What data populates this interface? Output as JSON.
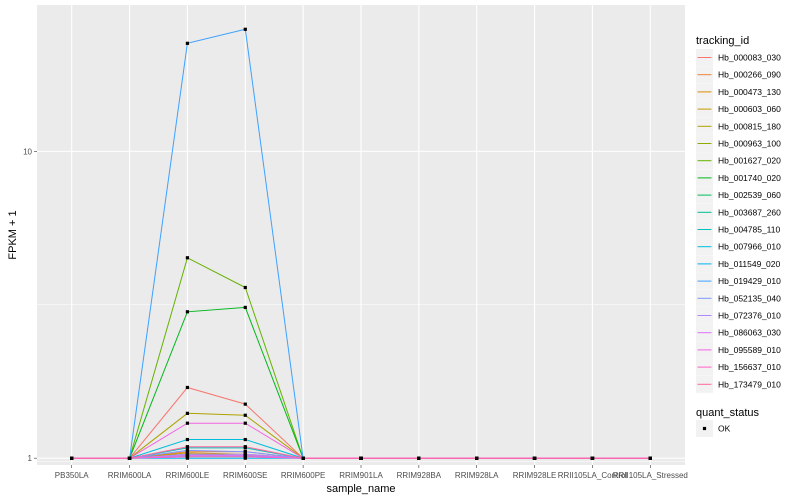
{
  "chart_data": {
    "type": "line",
    "title": "",
    "xlabel": "sample_name",
    "ylabel": "FPKM + 1",
    "y_scale": "log10",
    "ylim": [
      0.95,
      30
    ],
    "y_ticks": [
      1,
      10
    ],
    "y_tick_labels": [
      "1",
      "10"
    ],
    "grid": true,
    "legend_position": "right",
    "categories": [
      "PB350LA",
      "RRIM600LA",
      "RRIM600LE",
      "RRIM600SE",
      "RRIM600PE",
      "RRIM901LA",
      "RRIM928BA",
      "RRIM928LA",
      "RRIM928LE",
      "RRII105LA_Control",
      "RRII105LA_Stressed"
    ],
    "legend_title": "tracking_id",
    "series": [
      {
        "name": "Hb_000083_030",
        "color": "#F8766D",
        "values": [
          1,
          1,
          1.7,
          1.5,
          1,
          1,
          1,
          1,
          1,
          1,
          1
        ]
      },
      {
        "name": "Hb_000266_090",
        "color": "#EC8239",
        "values": [
          1,
          1,
          1.05,
          1.05,
          1,
          1,
          1,
          1,
          1,
          1,
          1
        ]
      },
      {
        "name": "Hb_000473_130",
        "color": "#DB8E00",
        "values": [
          1,
          1,
          1.02,
          1.02,
          1,
          1,
          1,
          1,
          1,
          1,
          1
        ]
      },
      {
        "name": "Hb_000603_060",
        "color": "#C79800",
        "values": [
          1,
          1,
          1.04,
          1.03,
          1,
          1,
          1,
          1,
          1,
          1,
          1
        ]
      },
      {
        "name": "Hb_000815_180",
        "color": "#AEA200",
        "values": [
          1,
          1,
          1.4,
          1.38,
          1,
          1,
          1,
          1,
          1,
          1,
          1
        ]
      },
      {
        "name": "Hb_000963_100",
        "color": "#8FAA00",
        "values": [
          1,
          1,
          1.03,
          1.02,
          1,
          1,
          1,
          1,
          1,
          1,
          1
        ]
      },
      {
        "name": "Hb_001627_020",
        "color": "#64B200",
        "values": [
          1,
          1,
          4.5,
          3.6,
          1,
          1,
          1,
          1,
          1,
          1,
          1
        ]
      },
      {
        "name": "Hb_001740_020",
        "color": "#00B81B",
        "values": [
          1,
          1,
          3.0,
          3.1,
          1,
          1,
          1,
          1,
          1,
          1,
          1
        ]
      },
      {
        "name": "Hb_002539_060",
        "color": "#00BD5C",
        "values": [
          1,
          1,
          1.01,
          1.01,
          1,
          1,
          1,
          1,
          1,
          1,
          1
        ]
      },
      {
        "name": "Hb_003687_260",
        "color": "#00C08E",
        "values": [
          1,
          1,
          1.02,
          1.02,
          1,
          1,
          1,
          1,
          1,
          1,
          1
        ]
      },
      {
        "name": "Hb_004785_110",
        "color": "#00C1B7",
        "values": [
          1,
          1,
          1.08,
          1.08,
          1,
          1,
          1,
          1,
          1,
          1,
          1
        ]
      },
      {
        "name": "Hb_007966_010",
        "color": "#00BDDC",
        "values": [
          1,
          1,
          1.15,
          1.15,
          1,
          1,
          1,
          1,
          1,
          1,
          1
        ]
      },
      {
        "name": "Hb_011549_020",
        "color": "#00B4F0",
        "values": [
          1,
          1,
          1.0,
          1.0,
          1,
          1,
          1,
          1,
          1,
          1,
          1
        ]
      },
      {
        "name": "Hb_019429_010",
        "color": "#3DA1FF",
        "values": [
          1,
          1,
          22.5,
          25.0,
          1,
          1,
          1,
          1,
          1,
          1,
          1
        ]
      },
      {
        "name": "Hb_052135_040",
        "color": "#7F96FF",
        "values": [
          1,
          1,
          1.06,
          1.05,
          1,
          1,
          1,
          1,
          1,
          1,
          1
        ]
      },
      {
        "name": "Hb_072376_010",
        "color": "#B385FF",
        "values": [
          1,
          1,
          1.03,
          1.03,
          1,
          1,
          1,
          1,
          1,
          1,
          1
        ]
      },
      {
        "name": "Hb_086063_030",
        "color": "#DC71FA",
        "values": [
          1,
          1,
          1.02,
          1.02,
          1,
          1,
          1,
          1,
          1,
          1,
          1
        ]
      },
      {
        "name": "Hb_095589_010",
        "color": "#F564E3",
        "values": [
          1,
          1,
          1.3,
          1.3,
          1,
          1,
          1,
          1,
          1,
          1,
          1
        ]
      },
      {
        "name": "Hb_156637_010",
        "color": "#FF61C4",
        "values": [
          1,
          1,
          1.01,
          1.01,
          1,
          1,
          1,
          1,
          1,
          1,
          1
        ]
      },
      {
        "name": "Hb_173479_010",
        "color": "#FF68A0",
        "values": [
          1,
          1,
          1.09,
          1.09,
          1,
          1,
          1,
          1,
          1,
          1,
          1
        ]
      }
    ],
    "shape_legend": {
      "title": "quant_status",
      "items": [
        "OK"
      ]
    },
    "colors": {
      "panel_bg": "#EBEBEB",
      "grid_major": "#FFFFFF",
      "point": "#000000"
    }
  }
}
